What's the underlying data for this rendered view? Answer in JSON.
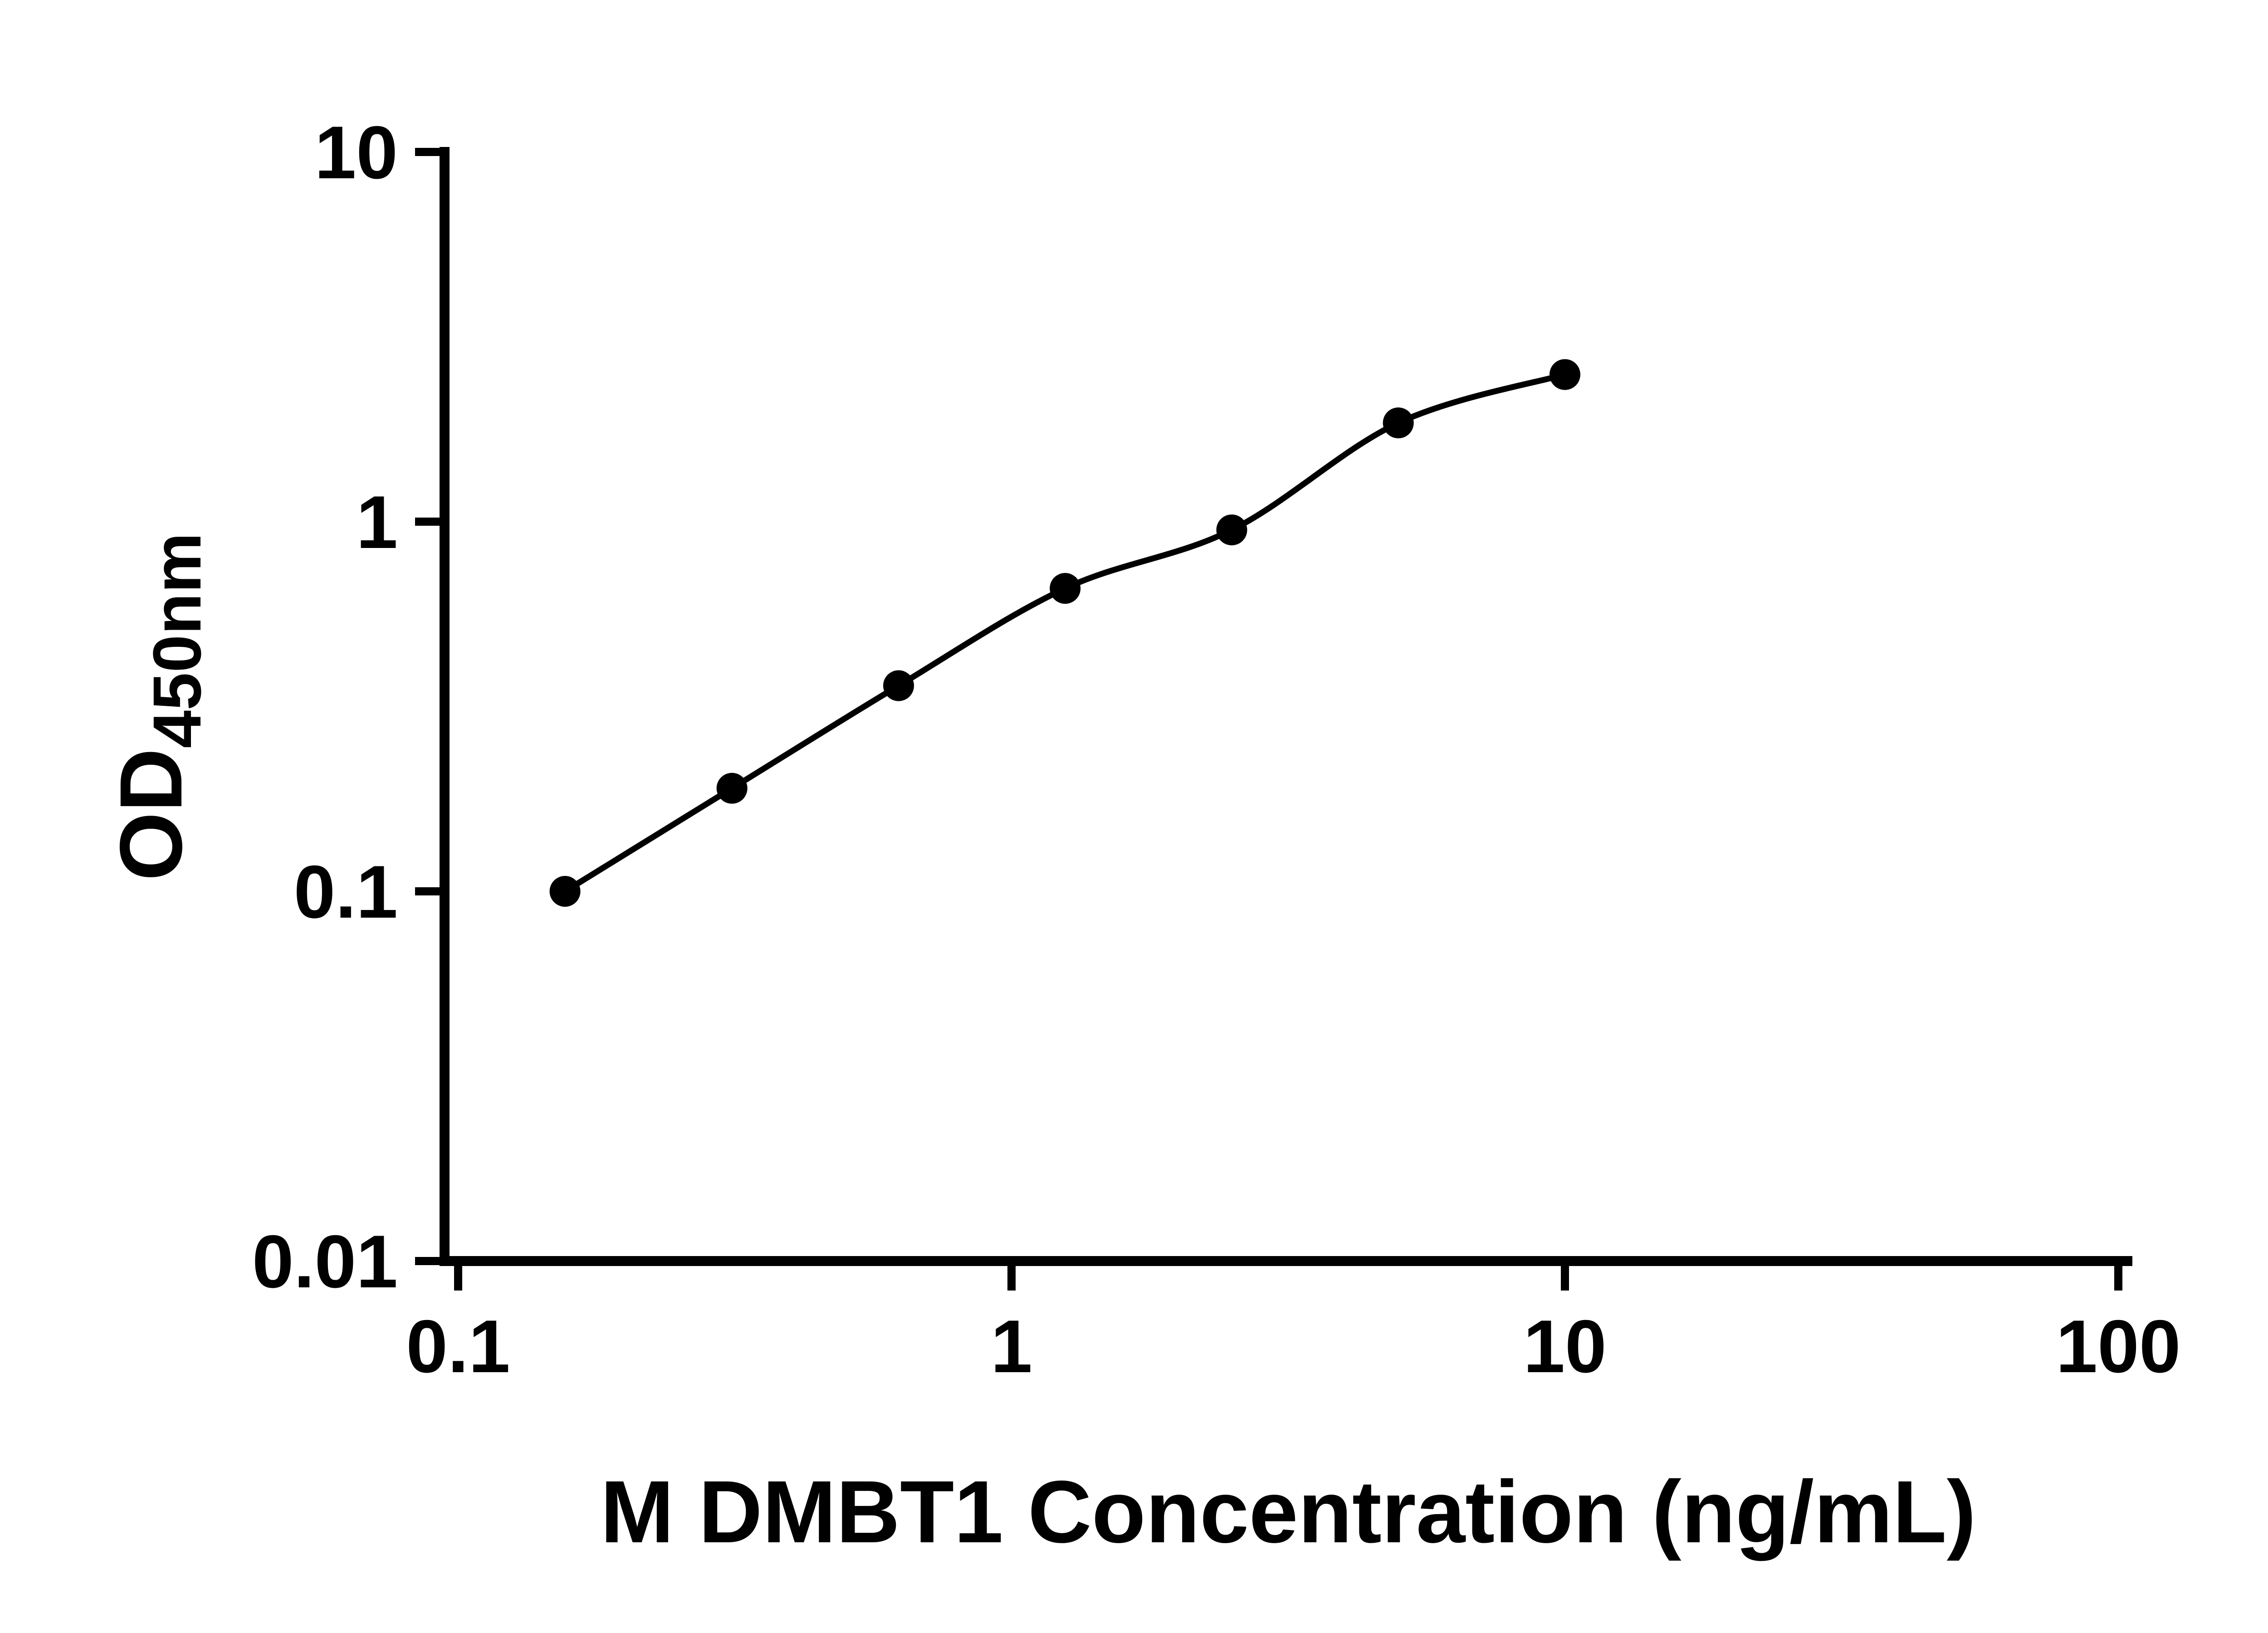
{
  "chart_data": {
    "type": "scatter",
    "x": [
      0.156,
      0.3125,
      0.625,
      1.25,
      2.5,
      5,
      10
    ],
    "y": [
      0.1,
      0.19,
      0.36,
      0.66,
      0.95,
      1.85,
      2.5
    ],
    "xlabel": "M DMBT1 Concentration (ng/mL)",
    "ylabel_main": "OD",
    "ylabel_subscript": "450nm",
    "xscale": "log",
    "yscale": "log",
    "xlim": [
      0.1,
      100
    ],
    "ylim": [
      0.01,
      10
    ],
    "x_ticks": [
      0.1,
      1,
      10,
      100
    ],
    "x_tick_labels": [
      "0.1",
      "1",
      "10",
      "100"
    ],
    "y_ticks": [
      0.01,
      0.1,
      1,
      10
    ],
    "y_tick_labels": [
      "0.01",
      "0.1",
      "1",
      "10"
    ],
    "grid": false,
    "legend_position": "none",
    "curve_style": "smooth-fit-through-points",
    "colors": {
      "axis": "#000000",
      "marker": "#000000",
      "line": "#000000",
      "background": "#ffffff"
    }
  }
}
